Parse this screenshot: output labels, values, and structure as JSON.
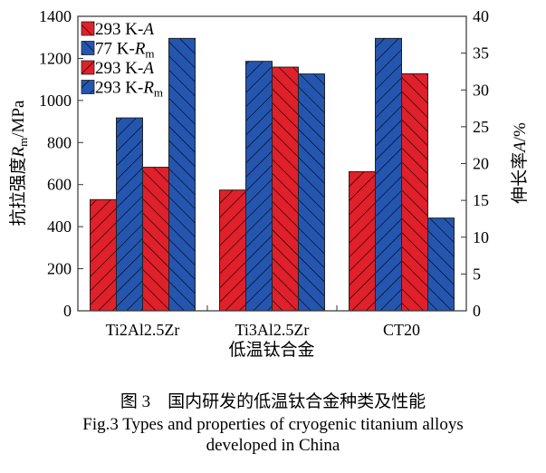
{
  "chart_data": {
    "type": "bar",
    "categories": [
      "Ti2Al2.5Zr",
      "Ti3Al2.5Zr",
      "CT20"
    ],
    "xlabel": "低温钛合金",
    "ylabel_left": {
      "pre": "抗拉强度",
      "var": "R",
      "sub": "m",
      "post": "/MPa"
    },
    "ylabel_right": {
      "pre": "伸长率",
      "var": "A",
      "post": "/%"
    },
    "ylim_left": [
      0,
      1400
    ],
    "yticks_left": [
      0,
      200,
      400,
      600,
      800,
      1000,
      1200,
      1400
    ],
    "ylim_right": [
      0,
      40
    ],
    "yticks_right": [
      0,
      5,
      10,
      15,
      20,
      25,
      30,
      35,
      40
    ],
    "grid": false,
    "legend_position": "top-left",
    "series": [
      {
        "name": {
          "pre": "293 K-",
          "var": "A",
          "sub": ""
        },
        "axis": "right",
        "color": "#e0202a",
        "hatch": "forward",
        "values": [
          15.1,
          16.4,
          18.9
        ]
      },
      {
        "name": {
          "pre": "77 K-",
          "var": "R",
          "sub": "m"
        },
        "axis": "left",
        "color": "#2456b0",
        "hatch": "forward",
        "values": [
          917,
          1186,
          1295
        ]
      },
      {
        "name": {
          "pre": "293 K-",
          "var": "A",
          "sub": ""
        },
        "axis": "right",
        "color": "#e0202a",
        "hatch": "back",
        "values": [
          19.5,
          33.1,
          32.2
        ]
      },
      {
        "name": {
          "pre": "293 K-",
          "var": "R",
          "sub": "m"
        },
        "axis": "left",
        "color": "#2456b0",
        "hatch": "back",
        "values": [
          1295,
          1126,
          441
        ]
      }
    ]
  },
  "caption": {
    "cn": "图 3　国内研发的低温钛合金种类及性能",
    "en_line1": "Fig.3 Types and properties of cryogenic titanium alloys",
    "en_line2": "developed in China"
  }
}
